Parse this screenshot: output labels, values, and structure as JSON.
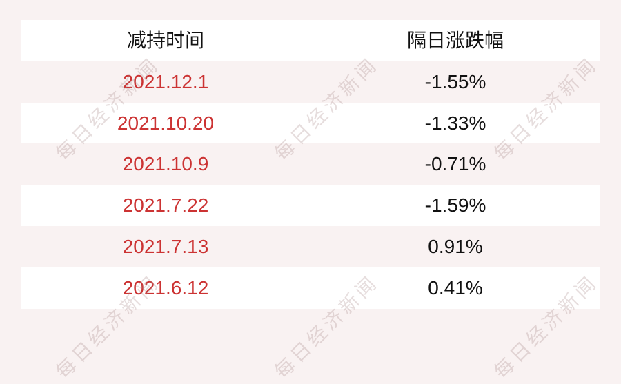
{
  "page": {
    "background_color": "#f9f2f2",
    "row_white_color": "#ffffff",
    "date_red_color": "#cc3333",
    "text_color": "#111111",
    "watermark_color": "#e6dada"
  },
  "watermark": {
    "text": "每日经济新闻"
  },
  "table": {
    "headers": [
      "减持时间",
      "隔日涨跌幅"
    ],
    "rows": [
      {
        "date": "2021.12.1",
        "change": "-1.55%"
      },
      {
        "date": "2021.10.20",
        "change": "-1.33%"
      },
      {
        "date": "2021.10.9",
        "change": "-0.71%"
      },
      {
        "date": "2021.7.22",
        "change": "-1.59%"
      },
      {
        "date": "2021.7.13",
        "change": "0.91%"
      },
      {
        "date": "2021.6.12",
        "change": "0.41%"
      }
    ]
  },
  "chart_data": {
    "type": "table",
    "title": "",
    "columns": [
      "减持时间",
      "隔日涨跌幅"
    ],
    "rows": [
      [
        "2021.12.1",
        "-1.55%"
      ],
      [
        "2021.10.20",
        "-1.33%"
      ],
      [
        "2021.10.9",
        "-0.71%"
      ],
      [
        "2021.7.22",
        "-1.59%"
      ],
      [
        "2021.7.13",
        "0.91%"
      ],
      [
        "2021.6.12",
        "0.41%"
      ]
    ],
    "values_numeric_percent": [
      -1.55,
      -1.33,
      -0.71,
      -1.59,
      0.91,
      0.41
    ],
    "layout_hints": {
      "header_background": "white",
      "alternating_rows": "white / page pink",
      "date_column_color": "red",
      "change_column_color": "black",
      "watermark_repeated_diagonal": true
    }
  }
}
